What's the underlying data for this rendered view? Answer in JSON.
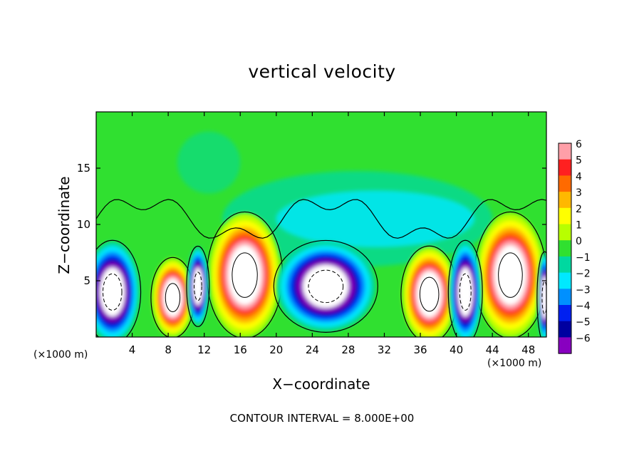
{
  "chart_data": {
    "type": "heatmap",
    "title": "vertical velocity",
    "xlabel": "X−coordinate",
    "ylabel": "Z−coordinate",
    "x_unit_label": "(×1000 m)",
    "x_ticks": [
      "4",
      "8",
      "12",
      "16",
      "20",
      "24",
      "28",
      "32",
      "36",
      "40",
      "44",
      "48"
    ],
    "x_tick_values": [
      4,
      8,
      12,
      16,
      20,
      24,
      28,
      32,
      36,
      40,
      44,
      48
    ],
    "y_ticks": [
      "5",
      "10",
      "15"
    ],
    "y_tick_values": [
      5,
      10,
      15
    ],
    "xlim": [
      0,
      50
    ],
    "ylim": [
      0,
      20
    ],
    "colorbar": {
      "ticks": [
        "6",
        "5",
        "4",
        "3",
        "2",
        "1",
        "0",
        "−1",
        "−2",
        "−3",
        "−4",
        "−5",
        "−6"
      ],
      "values": [
        6,
        5,
        4,
        3,
        2,
        1,
        0,
        -1,
        -2,
        -3,
        -4,
        -5,
        -6
      ],
      "colors": [
        "#ff9fa8",
        "#ff2020",
        "#ff6a00",
        "#ffb800",
        "#ffff00",
        "#b8ff00",
        "#30e030",
        "#00d8a0",
        "#00e8ff",
        "#0090ff",
        "#0020f0",
        "#0000a0",
        "#8800c0"
      ]
    },
    "background_color": "#30e030",
    "features": [
      {
        "kind": "updraft",
        "x_center": 8.5,
        "z_center": 3.5,
        "x_half_width": 2.3,
        "z_half_height": 3.5
      },
      {
        "kind": "updraft",
        "x_center": 16.5,
        "z_center": 5.5,
        "x_half_width": 4.0,
        "z_half_height": 5.5
      },
      {
        "kind": "updraft",
        "x_center": 37.0,
        "z_center": 3.8,
        "x_half_width": 3.0,
        "z_half_height": 4.2
      },
      {
        "kind": "updraft",
        "x_center": 46.0,
        "z_center": 5.5,
        "x_half_width": 3.8,
        "z_half_height": 5.5
      },
      {
        "kind": "downdraft",
        "x_center": 1.8,
        "z_center": 4.0,
        "x_half_width": 3.0,
        "z_half_height": 4.5
      },
      {
        "kind": "downdraft",
        "x_center": 11.3,
        "z_center": 4.5,
        "x_half_width": 1.2,
        "z_half_height": 3.5
      },
      {
        "kind": "downdraft",
        "x_center": 25.5,
        "z_center": 4.5,
        "x_half_width": 5.5,
        "z_half_height": 4.0
      },
      {
        "kind": "downdraft",
        "x_center": 41.0,
        "z_center": 4.0,
        "x_half_width": 1.8,
        "z_half_height": 4.5
      },
      {
        "kind": "downdraft",
        "x_center": 49.8,
        "z_center": 3.5,
        "x_half_width": 0.8,
        "z_half_height": 4.0
      }
    ]
  },
  "footer_note": "CONTOUR INTERVAL = 8.000E+00"
}
